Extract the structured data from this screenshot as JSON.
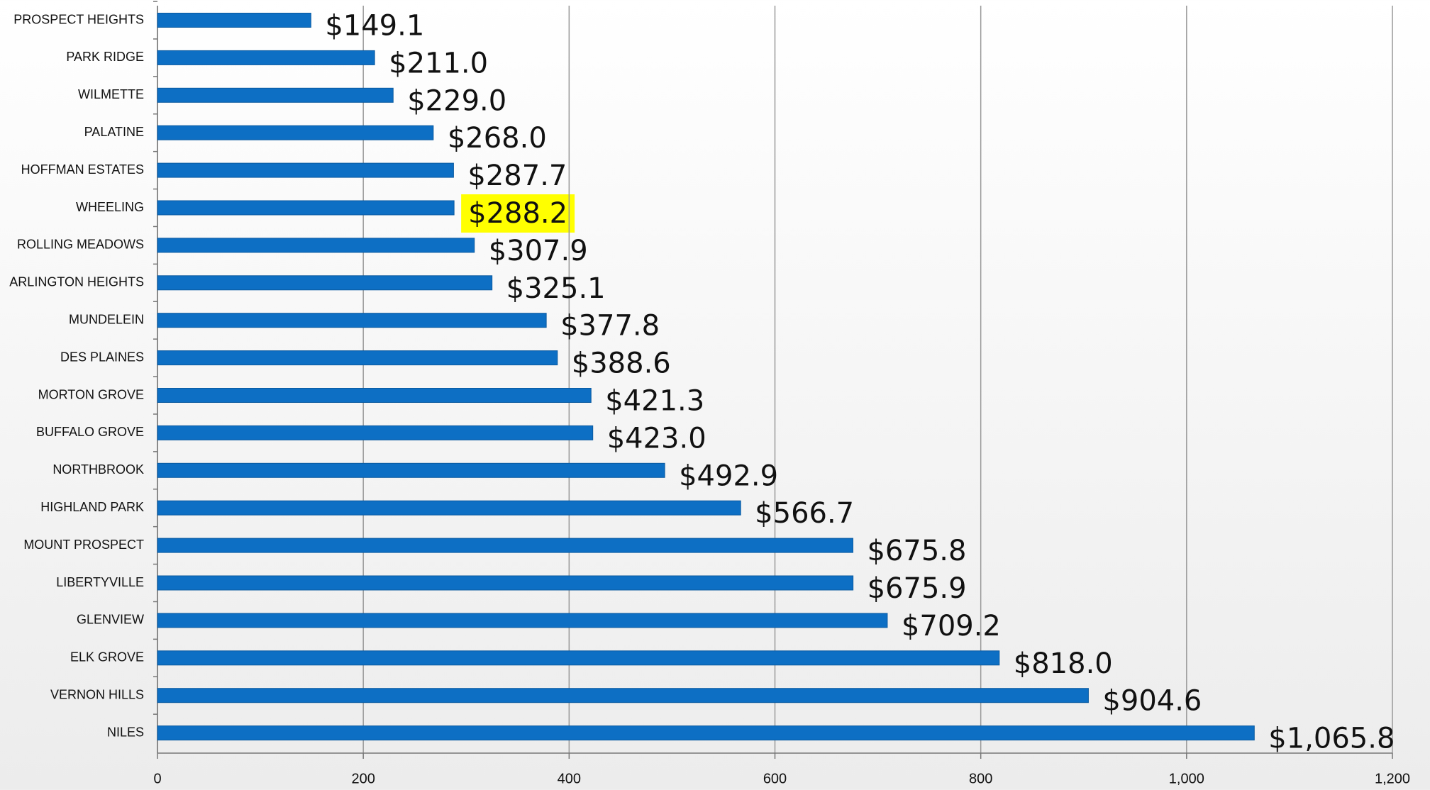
{
  "chart_data": {
    "type": "barh",
    "categories": [
      "PROSPECT HEIGHTS",
      "PARK RIDGE",
      "WILMETTE",
      "PALATINE",
      "HOFFMAN ESTATES",
      "WHEELING",
      "ROLLING MEADOWS",
      "ARLINGTON HEIGHTS",
      "MUNDELEIN",
      "DES PLAINES",
      "MORTON GROVE",
      "BUFFALO GROVE",
      "NORTHBROOK",
      "HIGHLAND PARK",
      "MOUNT PROSPECT",
      "LIBERTYVILLE",
      "GLENVIEW",
      "ELK GROVE",
      "VERNON HILLS",
      "NILES"
    ],
    "values": [
      149.1,
      211.0,
      229.0,
      268.0,
      287.7,
      288.2,
      307.9,
      325.1,
      377.8,
      388.6,
      421.3,
      423.0,
      492.9,
      566.7,
      675.8,
      675.9,
      709.2,
      818.0,
      904.6,
      1065.8
    ],
    "value_labels": [
      "$149.1",
      "$211.0",
      "$229.0",
      "$268.0",
      "$287.7",
      "$288.2",
      "$307.9",
      "$325.1",
      "$377.8",
      "$388.6",
      "$421.3",
      "$423.0",
      "$492.9",
      "$566.7",
      "$675.8",
      "$675.9",
      "$709.2",
      "$818.0",
      "$904.6",
      "$1,065.8"
    ],
    "color": "#0d6fc4",
    "highlight": {
      "index": 5,
      "color": "#ffff00"
    },
    "xlim": [
      0,
      1200
    ],
    "xticks": [
      0,
      200,
      400,
      600,
      800,
      {
        "value": 1000,
        "label": "1,000"
      },
      {
        "value": 1200,
        "label": "1,200"
      }
    ],
    "grid": true
  }
}
